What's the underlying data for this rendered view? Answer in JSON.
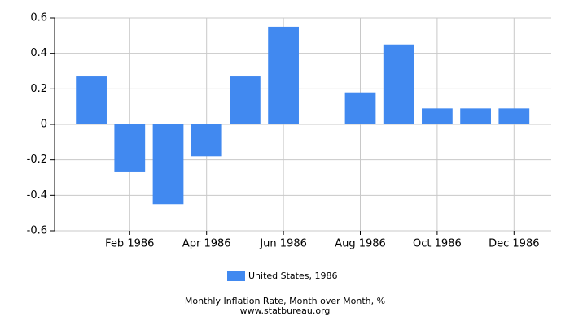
{
  "chart_data": {
    "type": "bar",
    "title": "Monthly Inflation Rate, Month over Month, %",
    "subtitle": "www.statbureau.org",
    "categories": [
      null,
      "Feb 1986",
      null,
      "Apr 1986",
      null,
      "Jun 1986",
      null,
      "Aug 1986",
      null,
      "Oct 1986",
      null,
      "Dec 1986"
    ],
    "series": [
      {
        "name": "United States, 1986",
        "color": "#4189f0",
        "values": [
          0.27,
          -0.27,
          -0.45,
          -0.18,
          0.27,
          0.55,
          0,
          0.18,
          0.45,
          0.09,
          0.09,
          0.09
        ]
      }
    ],
    "ylim": [
      -0.6,
      0.6
    ],
    "yticks": [
      -0.6,
      -0.4,
      -0.2,
      0,
      0.2,
      0.4,
      0.6
    ],
    "grid": true,
    "legend": "bottom"
  }
}
